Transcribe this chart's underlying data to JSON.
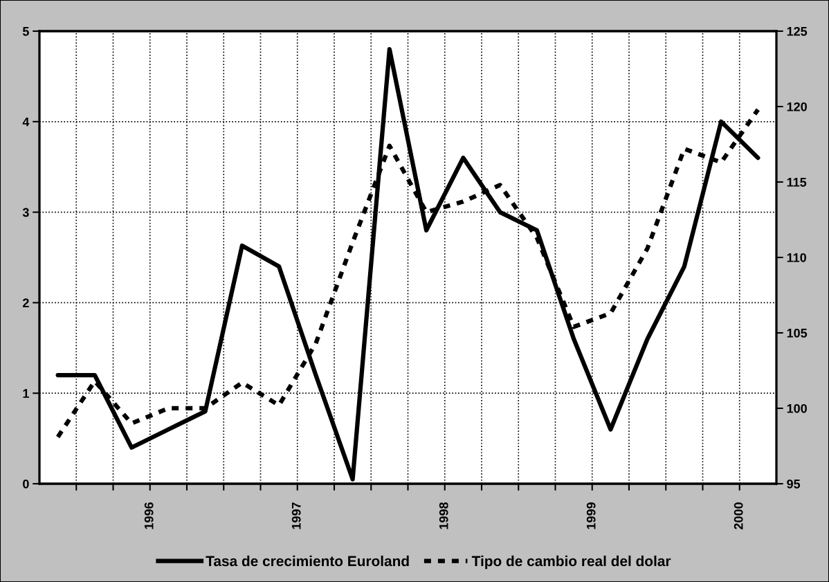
{
  "chart_data": {
    "type": "line",
    "x": [
      1995.375,
      1995.625,
      1995.875,
      1996.125,
      1996.375,
      1996.625,
      1996.875,
      1997.125,
      1997.375,
      1997.625,
      1997.875,
      1998.125,
      1998.375,
      1998.625,
      1998.875,
      1999.125,
      1999.375,
      1999.625,
      1999.875,
      2000.125
    ],
    "series": [
      {
        "name": "Tasa de crecimiento Euroland",
        "color": "#000000",
        "line_style": "solid",
        "values": [
          1.2,
          1.2,
          0.4,
          0.6,
          0.8,
          2.63,
          2.4,
          1.2,
          0.05,
          4.8,
          2.8,
          3.6,
          3.0,
          2.8,
          1.6,
          0.6,
          1.6,
          2.4,
          4.0,
          3.6
        ]
      },
      {
        "name": "Tipo de cambio real del dolar",
        "color": "#000000",
        "line_style": "dashed",
        "axis": "y2",
        "values": [
          98.1,
          101.8,
          99.0,
          100.0,
          100.0,
          101.7,
          100.2,
          104.3,
          111.0,
          117.4,
          113.0,
          113.7,
          114.8,
          111.3,
          105.4,
          106.3,
          110.6,
          117.2,
          116.3,
          119.8
        ]
      }
    ],
    "xlim": [
      1995.25,
      2000.25
    ],
    "xticks": [
      {
        "value": 1995.5,
        "label": null
      },
      {
        "value": 1995.75,
        "label": null
      },
      1996,
      {
        "value": 1996.25,
        "label": null
      },
      {
        "value": 1996.5,
        "label": null
      },
      {
        "value": 1996.75,
        "label": null
      },
      1997,
      {
        "value": 1997.25,
        "label": null
      },
      {
        "value": 1997.5,
        "label": null
      },
      {
        "value": 1997.75,
        "label": null
      },
      1998,
      {
        "value": 1998.25,
        "label": null
      },
      {
        "value": 1998.5,
        "label": null
      },
      {
        "value": 1998.75,
        "label": null
      },
      1999,
      {
        "value": 1999.25,
        "label": null
      },
      {
        "value": 1999.5,
        "label": null
      },
      {
        "value": 1999.75,
        "label": null
      },
      2000
    ],
    "ylim": [
      0,
      5
    ],
    "yticks": [
      0,
      1,
      2,
      3,
      4,
      5
    ],
    "y2lim": [
      95,
      125
    ],
    "y2ticks": [
      95,
      100,
      105,
      110,
      115,
      120,
      125
    ],
    "grid": true,
    "legend": "bottom",
    "marker": "none"
  }
}
